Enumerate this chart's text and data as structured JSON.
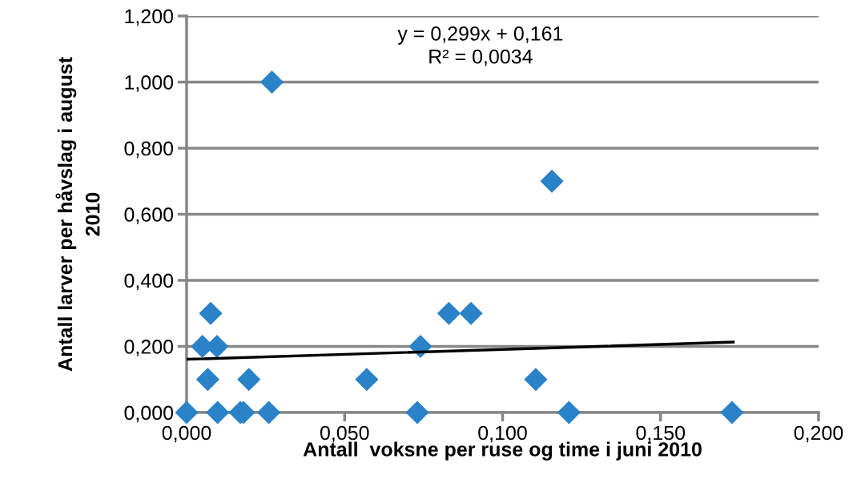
{
  "chart_data": {
    "type": "scatter",
    "xlabel": "Antall  voksne per ruse og time i juni 2010",
    "ylabel": "Antall larver per håvslag i august\n2010",
    "series": [
      {
        "color": "#2a82c8",
        "marker": "diamond",
        "x": [
          0.0,
          0.005,
          0.0076,
          0.0067,
          0.0096,
          0.0098,
          0.017,
          0.018,
          0.0197,
          0.026,
          0.027,
          0.057,
          0.073,
          0.074,
          0.083,
          0.09,
          0.1105,
          0.1156,
          0.121,
          0.1726
        ],
        "values": [
          0,
          0.2,
          0.3,
          0.1,
          0.2,
          0,
          0,
          0,
          0.1,
          0,
          1.0,
          0.1,
          0,
          0.2,
          0.3,
          0.3,
          0.1,
          0.7,
          0,
          0
        ]
      },
      {
        "type": "line",
        "color": "#000000",
        "x": [
          0.0,
          0.173
        ],
        "values": [
          0.161,
          0.213
        ]
      }
    ],
    "annotations": [
      "y = 0,299x + 0,161\nR² = 0,0034"
    ],
    "xlim": [
      0,
      0.2
    ],
    "xticks": [
      {
        "value": 0,
        "label": "0,000"
      },
      {
        "value": 0.05,
        "label": "0,050"
      },
      {
        "value": 0.1,
        "label": "0,100"
      },
      {
        "value": 0.15,
        "label": "0,150"
      },
      {
        "value": 0.2,
        "label": "0,200"
      }
    ],
    "ylim": [
      0,
      1.2
    ],
    "yticks": [
      {
        "value": 0,
        "label": "0,000"
      },
      {
        "value": 0.2,
        "label": "0,200"
      },
      {
        "value": 0.4,
        "label": "0,400"
      },
      {
        "value": 0.6,
        "label": "0,600"
      },
      {
        "value": 0.8,
        "label": "0,800"
      },
      {
        "value": 1.0,
        "label": "1,000"
      },
      {
        "value": 1.2,
        "label": "1,200"
      }
    ],
    "grid": "y",
    "legend": false
  }
}
